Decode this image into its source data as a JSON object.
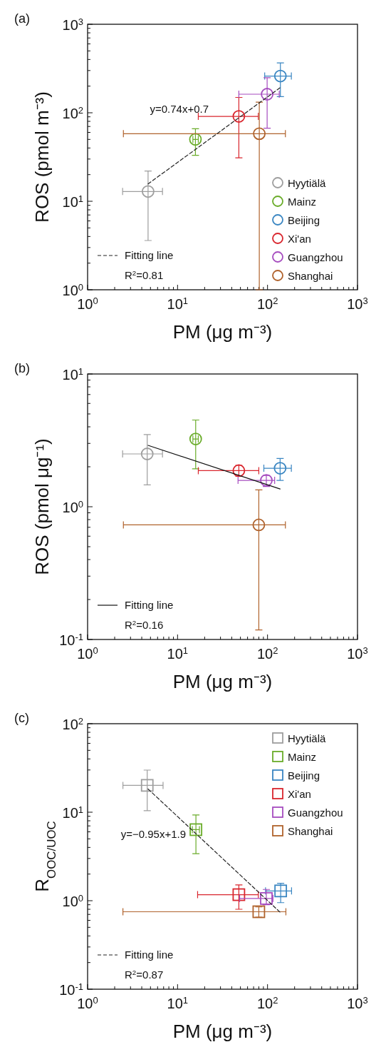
{
  "chart_data": [
    {
      "type": "scatter",
      "title": "(a)",
      "xlabel": "PM (μg m⁻³)",
      "ylabel": "ROS (pmol m⁻³)",
      "log": "xy",
      "marker": "circle",
      "legend": "bottom right",
      "xlim": [
        1,
        1000
      ],
      "xticks": [
        {
          "value": 1,
          "label": "10$^{0}$"
        },
        {
          "value": 10,
          "label": "10$^{1}$"
        },
        {
          "value": 100,
          "label": "10$^{2}$"
        },
        {
          "value": 1000,
          "label": "10$^{3}$"
        }
      ],
      "ylim": [
        1,
        1000
      ],
      "yticks": [
        {
          "value": 1,
          "label": "10$^{0}$"
        },
        {
          "value": 10,
          "label": "10$^{1}$"
        },
        {
          "value": 100,
          "label": "10$^{2}$"
        },
        {
          "value": 1000,
          "label": "10$^{3}$"
        }
      ],
      "annotations": [
        "y=0.74x+0.7",
        "R$^{2}$=0.81"
      ],
      "series": [
        {
          "name": "Hyytiälä",
          "color": "#9e9e9e",
          "x": [
            4.7
          ],
          "values": [
            12.9
          ],
          "errors": [
            [
              3.6,
              22
            ]
          ],
          "xerrors": [
            [
              2.45,
              6.8
            ]
          ]
        },
        {
          "name": "Mainz",
          "color": "#6aac2a",
          "x": [
            15.8
          ],
          "values": [
            50
          ],
          "errors": [
            [
              33,
              66
            ]
          ],
          "xerrors": [
            [
              14.8,
              17
            ]
          ]
        },
        {
          "name": "Beijing",
          "color": "#3a86c2",
          "x": [
            139
          ],
          "values": [
            260
          ],
          "errors": [
            [
              152,
              366
            ]
          ],
          "xerrors": [
            [
              93,
              184
            ]
          ]
        },
        {
          "name": "Xi'an",
          "color": "#d9262e",
          "x": [
            48
          ],
          "values": [
            91
          ],
          "errors": [
            [
              31,
              149
            ]
          ],
          "xerrors": [
            [
              17,
              79
            ]
          ]
        },
        {
          "name": "Guangzhou",
          "color": "#a64dbf",
          "x": [
            99
          ],
          "values": [
            162
          ],
          "errors": [
            [
              67,
              249
            ]
          ],
          "xerrors": [
            [
              48,
              135
            ]
          ]
        },
        {
          "name": "Shanghai",
          "color": "#b0632d",
          "x": [
            81
          ],
          "values": [
            58
          ],
          "errors": [
            [
              1,
              132
            ]
          ],
          "xerrors": [
            [
              2.5,
              158
            ]
          ]
        },
        {
          "name": "Fitting line",
          "type": "line",
          "marker": "none",
          "color": "#222222",
          "line_style": "dashed",
          "x": [
            4.7,
            140
          ],
          "values": [
            15.7,
            194
          ]
        }
      ]
    },
    {
      "type": "scatter",
      "title": "(b)",
      "xlabel": "PM (μg m⁻³)",
      "ylabel": "ROS (pmol μg⁻¹)",
      "log": "xy",
      "marker": "circle",
      "legend": "bottom left",
      "xlim": [
        1,
        1000
      ],
      "xticks": [
        {
          "value": 1,
          "label": "10$^{0}$"
        },
        {
          "value": 10,
          "label": "10$^{1}$"
        },
        {
          "value": 100,
          "label": "10$^{2}$"
        },
        {
          "value": 1000,
          "label": "10$^{3}$"
        }
      ],
      "ylim": [
        0.1,
        10
      ],
      "yticks": [
        {
          "value": 0.1,
          "label": "10$^{-1}$"
        },
        {
          "value": 1,
          "label": "10$^{0}$"
        },
        {
          "value": 10,
          "label": "10$^{1}$"
        }
      ],
      "annotations": [
        "R$^{2}$=0.16"
      ],
      "series": [
        {
          "color": "#9e9e9e",
          "x": [
            4.6
          ],
          "values": [
            2.5
          ],
          "errors": [
            [
              1.46,
              3.5
            ]
          ],
          "xerrors": [
            [
              2.45,
              6.8
            ]
          ]
        },
        {
          "color": "#6aac2a",
          "x": [
            15.9
          ],
          "values": [
            3.24
          ],
          "errors": [
            [
              1.93,
              4.5
            ]
          ],
          "xerrors": [
            [
              14.8,
              17
            ]
          ]
        },
        {
          "color": "#3a86c2",
          "x": [
            138
          ],
          "values": [
            1.95
          ],
          "errors": [
            [
              1.58,
              2.31
            ]
          ],
          "xerrors": [
            [
              91,
              184
            ]
          ]
        },
        {
          "color": "#d9262e",
          "x": [
            48
          ],
          "values": [
            1.87
          ],
          "errors": [
            [
              1.7,
              2.05
            ]
          ],
          "xerrors": [
            [
              17,
              80
            ]
          ]
        },
        {
          "color": "#a64dbf",
          "x": [
            97
          ],
          "values": [
            1.58
          ],
          "errors": [
            [
              1.42,
              1.72
            ]
          ],
          "xerrors": [
            [
              47,
              120
            ]
          ]
        },
        {
          "color": "#b0632d",
          "x": [
            80
          ],
          "values": [
            0.73
          ],
          "errors": [
            [
              0.118,
              1.34
            ]
          ],
          "xerrors": [
            [
              2.5,
              158
            ]
          ]
        },
        {
          "name": "Fitting line",
          "type": "line",
          "marker": "none",
          "color": "#111111",
          "line_style": "solid",
          "x": [
            4.7,
            138
          ],
          "values": [
            2.9,
            1.36
          ]
        }
      ]
    },
    {
      "type": "scatter",
      "title": "(c)",
      "xlabel": "PM (μg m⁻³)",
      "ylabel": "R$_{OOC/UOC}$",
      "log": "xy",
      "marker": "square",
      "legend": "top right",
      "xlim": [
        1,
        1000
      ],
      "xticks": [
        {
          "value": 1,
          "label": "10$^{0}$"
        },
        {
          "value": 10,
          "label": "10$^{1}$"
        },
        {
          "value": 100,
          "label": "10$^{2}$"
        },
        {
          "value": 1000,
          "label": "10$^{3}$"
        }
      ],
      "ylim": [
        0.1,
        100
      ],
      "yticks": [
        {
          "value": 0.1,
          "label": "10$^{-1}$"
        },
        {
          "value": 1,
          "label": "10$^{0}$"
        },
        {
          "value": 10,
          "label": "10$^{1}$"
        },
        {
          "value": 100,
          "label": "10$^{2}$"
        }
      ],
      "annotations": [
        "y=−0.95x+1.9",
        "R$^{2}$=0.87"
      ],
      "series": [
        {
          "name": "Hyytiälä",
          "color": "#9e9e9e",
          "x": [
            4.6
          ],
          "values": [
            20.1
          ],
          "errors": [
            [
              10.4,
              29.9
            ]
          ],
          "xerrors": [
            [
              2.47,
              6.9
            ]
          ]
        },
        {
          "name": "Mainz",
          "color": "#6aac2a",
          "x": [
            16
          ],
          "values": [
            6.35
          ],
          "errors": [
            [
              3.4,
              9.3
            ]
          ],
          "xerrors": [
            [
              14.6,
              17.5
            ]
          ]
        },
        {
          "name": "Beijing",
          "color": "#3a86c2",
          "x": [
            140
          ],
          "values": [
            1.29
          ],
          "errors": [
            [
              0.95,
              1.57
            ]
          ],
          "xerrors": [
            [
              95,
              185
            ]
          ]
        },
        {
          "name": "Xi'an",
          "color": "#d9262e",
          "x": [
            48
          ],
          "values": [
            1.17
          ],
          "errors": [
            [
              0.8,
              1.51
            ]
          ],
          "xerrors": [
            [
              16.7,
              79
            ]
          ]
        },
        {
          "name": "Guangzhou",
          "color": "#a64dbf",
          "x": [
            97
          ],
          "values": [
            1.06
          ],
          "errors": [
            [
              0.9,
              1.34
            ]
          ],
          "xerrors": [
            [
              49,
              115
            ]
          ]
        },
        {
          "name": "Shanghai",
          "color": "#b0632d",
          "x": [
            80
          ],
          "values": [
            0.75
          ],
          "errors": [
            [
              0.65,
              0.85
            ]
          ],
          "xerrors": [
            [
              2.47,
              160
            ]
          ]
        },
        {
          "name": "Fitting line",
          "type": "line",
          "marker": "none",
          "color": "#222222",
          "line_style": "dashed",
          "x": [
            4.7,
            140
          ],
          "values": [
            18.3,
            0.73
          ]
        }
      ]
    }
  ]
}
